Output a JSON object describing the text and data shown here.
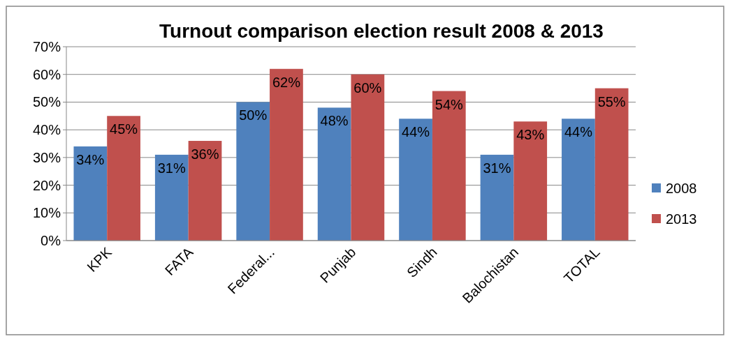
{
  "chart_data": {
    "type": "bar",
    "title": "Turnout comparison election result 2008 & 2013",
    "categories": [
      "KPK",
      "FATA",
      "Federal...",
      "Punjab",
      "Sindh",
      "Balochistan",
      "TOTAL"
    ],
    "series": [
      {
        "name": "2008",
        "color": "#4f81bd",
        "values": [
          34,
          31,
          50,
          48,
          44,
          31,
          44
        ],
        "value_labels": [
          "34%",
          "31%",
          "50%",
          "48%",
          "44%",
          "31%",
          "44%"
        ]
      },
      {
        "name": "2013",
        "color": "#c0504d",
        "values": [
          45,
          36,
          62,
          60,
          54,
          43,
          55
        ],
        "value_labels": [
          "45%",
          "36%",
          "62%",
          "60%",
          "54%",
          "43%",
          "55%"
        ]
      }
    ],
    "ylim": [
      0,
      70
    ],
    "yticks": [
      {
        "value": 0,
        "label": "0%"
      },
      {
        "value": 10,
        "label": "10%"
      },
      {
        "value": 20,
        "label": "20%"
      },
      {
        "value": 30,
        "label": "30%"
      },
      {
        "value": 40,
        "label": "40%"
      },
      {
        "value": 50,
        "label": "50%"
      },
      {
        "value": 60,
        "label": "60%"
      },
      {
        "value": 70,
        "label": "70%"
      }
    ],
    "grid": "y",
    "legend": "right"
  }
}
